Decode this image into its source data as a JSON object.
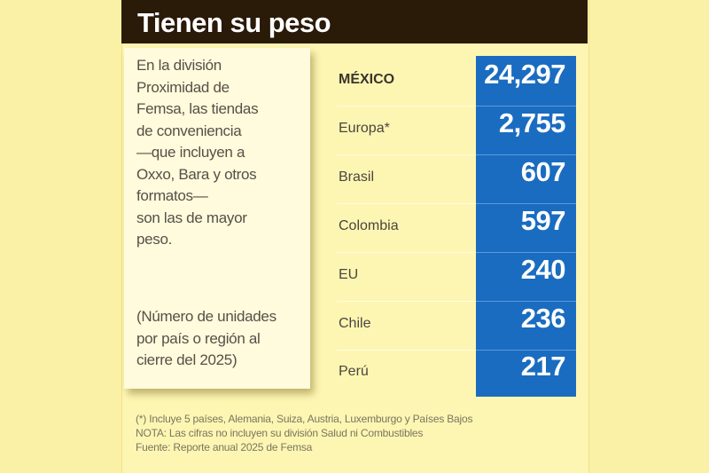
{
  "title": "Tienen su peso",
  "description": [
    "En la división",
    "Proximidad de",
    "Femsa, las tiendas",
    "de conveniencia",
    "—que incluyen a",
    "Oxxo, Bara y otros",
    "formatos—",
    "son las de mayor",
    "peso."
  ],
  "unit_note": [
    "(Número de unidades",
    "por país o región al",
    "cierre del 2025)"
  ],
  "colors": {
    "value_column": "#1a6cc0",
    "header": "#2a1a08",
    "background": "#fdf6b2"
  },
  "chart_data": {
    "type": "table",
    "title": "Tienen su peso",
    "categories": [
      "MÉXICO",
      "Europa*",
      "Brasil",
      "Colombia",
      "EU",
      "Chile",
      "Perú"
    ],
    "values": [
      24297,
      2755,
      607,
      597,
      240,
      236,
      217
    ],
    "value_labels": [
      "24,297",
      "2,755",
      "607",
      "597",
      "240",
      "236",
      "217"
    ]
  },
  "footnotes": [
    "(*) Incluye 5 países, Alemania, Suiza, Austria, Luxemburgo y Países Bajos",
    "NOTA: Las cifras no incluyen su división Salud ni Combustibles",
    "Fuente: Reporte anual 2025 de Femsa"
  ]
}
